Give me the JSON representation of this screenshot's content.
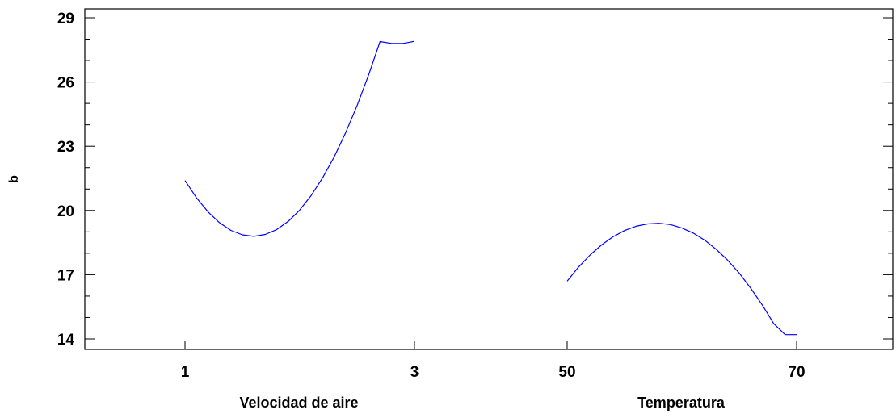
{
  "chart_data": {
    "type": "line",
    "title": "",
    "ylabel": "b",
    "ylim": [
      13.5,
      29.5
    ],
    "y_ticks": [
      14,
      17,
      20,
      23,
      26,
      29
    ],
    "y_tick_labels": [
      "14",
      "17",
      "20",
      "23",
      "26",
      "29"
    ],
    "grid": false,
    "line_color": "#0000ff",
    "panels": [
      {
        "xlabel": "Velocidad de aire",
        "x_ticks": [
          1,
          3
        ],
        "x_tick_labels": [
          "1",
          "3"
        ],
        "series": [
          {
            "x": [
              1.0,
              1.1,
              1.2,
              1.3,
              1.4,
              1.5,
              1.6,
              1.7,
              1.8,
              1.9,
              2.0,
              2.1,
              2.2,
              2.3,
              2.4,
              2.5,
              2.6,
              2.7,
              2.8,
              2.9,
              3.0
            ],
            "values": [
              21.4,
              20.59,
              19.94,
              19.43,
              19.07,
              18.86,
              18.79,
              18.88,
              19.11,
              19.49,
              20.02,
              20.7,
              21.53,
              22.5,
              23.63,
              24.9,
              26.32,
              27.89,
              27.8,
              27.8,
              27.9
            ]
          }
        ]
      },
      {
        "xlabel": "Temperatura",
        "x_ticks": [
          50,
          70
        ],
        "x_tick_labels": [
          "50",
          "70"
        ],
        "series": [
          {
            "x": [
              50,
              51,
              52,
              53,
              54,
              55,
              56,
              57,
              58,
              59,
              60,
              61,
              62,
              63,
              64,
              65,
              66,
              67,
              68,
              69,
              70
            ],
            "values": [
              16.7,
              17.36,
              17.92,
              18.39,
              18.77,
              19.06,
              19.26,
              19.37,
              19.4,
              19.34,
              19.18,
              18.94,
              18.61,
              18.18,
              17.67,
              17.07,
              16.37,
              15.59,
              14.72,
              14.2,
              14.2
            ]
          }
        ]
      }
    ]
  }
}
